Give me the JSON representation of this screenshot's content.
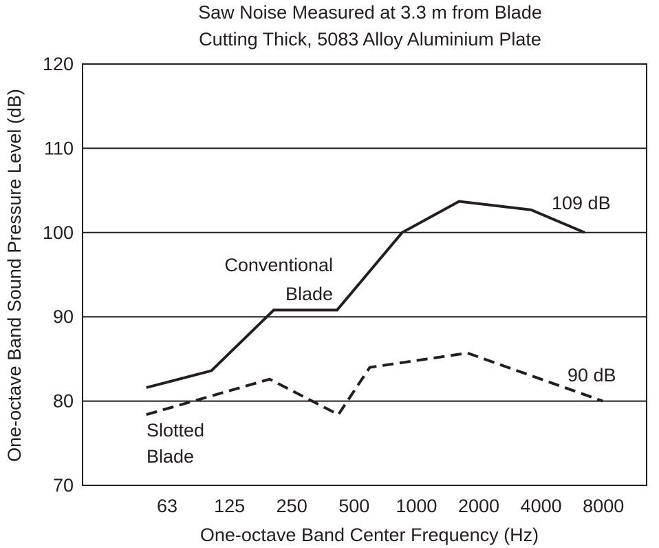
{
  "chart_data": {
    "type": "line",
    "title": [
      "Saw Noise Measured at 3.3 m from Blade",
      "Cutting Thick, 5083 Alloy Aluminium Plate"
    ],
    "xlabel": "One-octave Band Center Frequency (Hz)",
    "ylabel": "One-octave Band Sound Pressure Level (dB)",
    "x_scale": "log2",
    "x_ticks": [
      63,
      125,
      250,
      500,
      1000,
      2000,
      4000,
      8000
    ],
    "y_ticks": [
      70,
      80,
      90,
      100,
      110,
      120
    ],
    "ylim": [
      70,
      120
    ],
    "grid": "horizontal",
    "series": [
      {
        "name": "Conventional Blade",
        "label_lines": [
          "Conventional",
          "Blade"
        ],
        "style": "solid",
        "color": "#231f20",
        "total_label": "109 dB",
        "x": [
          50,
          103,
          206,
          417,
          860,
          1620,
          3610,
          6550
        ],
        "y": [
          81.6,
          83.6,
          90.8,
          90.8,
          100,
          103.7,
          102.7,
          100
        ]
      },
      {
        "name": "Slotted Blade",
        "label_lines": [
          "Slotted",
          "Blade"
        ],
        "style": "dashed",
        "color": "#231f20",
        "total_label": "90 dB",
        "x": [
          50,
          197,
          423,
          600,
          1780,
          8000
        ],
        "y": [
          78.4,
          82.6,
          78.4,
          84,
          85.7,
          80
        ]
      }
    ]
  }
}
